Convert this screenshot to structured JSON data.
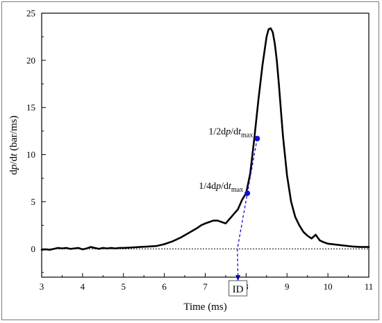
{
  "chart_data": {
    "type": "line",
    "title": "",
    "xlabel": "Time (ms)",
    "ylabel": {
      "pre": "d",
      "p": "p",
      "mid": "/d",
      "t": "t",
      "post": " (bar/ms)"
    },
    "xlim": [
      3,
      11
    ],
    "ylim": [
      -3,
      25
    ],
    "xticks": [
      3,
      4,
      5,
      6,
      7,
      8,
      9,
      10,
      11
    ],
    "yticks": [
      0,
      5,
      10,
      15,
      20,
      25
    ],
    "grid": false,
    "legend": "none",
    "colors": {
      "curve": "#000000",
      "marker": "#1010d8",
      "zero_line": "#000000"
    },
    "series": [
      {
        "x": [
          3.0,
          3.1,
          3.2,
          3.3,
          3.4,
          3.5,
          3.6,
          3.7,
          3.8,
          3.9,
          4.0,
          4.1,
          4.2,
          4.3,
          4.4,
          4.5,
          4.6,
          4.7,
          4.8,
          4.9,
          5.0,
          5.2,
          5.4,
          5.6,
          5.8,
          6.0,
          6.2,
          6.4,
          6.6,
          6.8,
          6.9,
          7.0,
          7.1,
          7.2,
          7.3,
          7.4,
          7.5,
          7.6,
          7.7,
          7.8,
          7.9,
          8.0,
          8.1,
          8.2,
          8.3,
          8.4,
          8.5,
          8.55,
          8.6,
          8.65,
          8.7,
          8.75,
          8.8,
          8.9,
          9.0,
          9.1,
          9.2,
          9.3,
          9.4,
          9.5,
          9.6,
          9.65,
          9.7,
          9.75,
          9.8,
          9.9,
          10.0,
          10.2,
          10.4,
          10.6,
          10.8,
          11.0
        ],
        "y": [
          -0.1,
          -0.05,
          -0.1,
          0.0,
          0.1,
          0.05,
          0.1,
          0.0,
          0.05,
          0.1,
          -0.05,
          0.05,
          0.2,
          0.1,
          0.0,
          0.1,
          0.05,
          0.1,
          0.05,
          0.1,
          0.1,
          0.15,
          0.2,
          0.25,
          0.3,
          0.5,
          0.8,
          1.2,
          1.7,
          2.2,
          2.5,
          2.7,
          2.85,
          3.0,
          3.0,
          2.85,
          2.7,
          3.2,
          3.7,
          4.2,
          5.2,
          5.9,
          8.0,
          11.7,
          15.8,
          19.5,
          22.5,
          23.3,
          23.4,
          23.0,
          21.8,
          20.0,
          17.5,
          12.0,
          7.8,
          5.0,
          3.4,
          2.5,
          1.8,
          1.4,
          1.1,
          1.3,
          1.5,
          1.2,
          0.9,
          0.7,
          0.55,
          0.45,
          0.35,
          0.25,
          0.2,
          0.2
        ]
      }
    ],
    "markers": [
      {
        "x": 8.03,
        "y": 5.9,
        "label_pre": "1/4d",
        "label_p": "p",
        "label_mid": "/d",
        "label_t": "t",
        "label_sub": "max"
      },
      {
        "x": 8.27,
        "y": 11.7,
        "label_pre": "1/2d",
        "label_p": "p",
        "label_mid": "/d",
        "label_t": "t",
        "label_sub": "max"
      }
    ],
    "ignition": {
      "x": 7.8,
      "label": "ID"
    }
  }
}
